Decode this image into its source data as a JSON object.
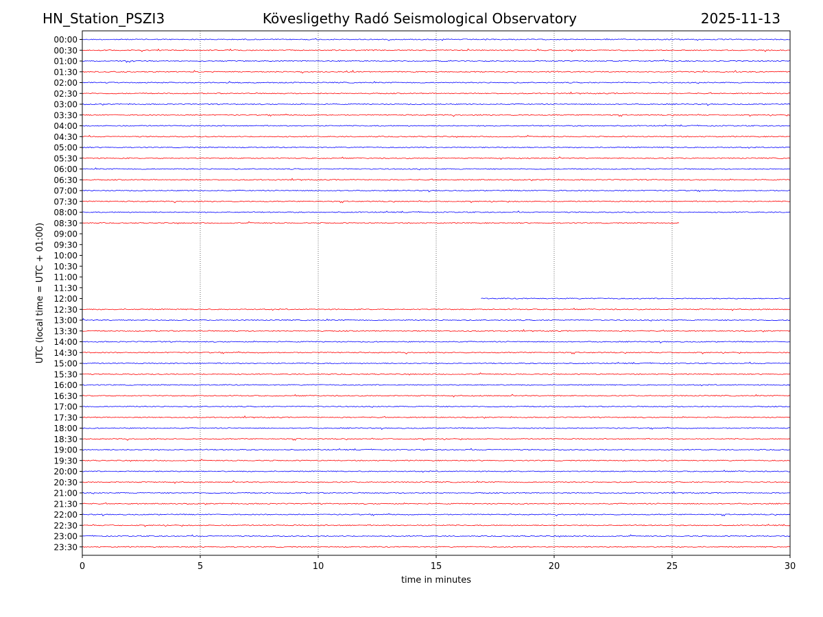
{
  "header": {
    "station": "HN_Station_PSZI3",
    "observatory": "Kövesligethy Radó Seismological Observatory",
    "date": "2025-11-13"
  },
  "chart_data": {
    "type": "line",
    "title": "Kövesligethy Radó Seismological Observatory",
    "xlabel": "time in minutes",
    "ylabel": "UTC (local time = UTC + 01:00)",
    "xlim": [
      0,
      30
    ],
    "xticks": [
      0,
      5,
      10,
      15,
      20,
      25,
      30
    ],
    "vertical_gridlines_minutes": [
      5,
      10,
      15,
      20,
      25
    ],
    "grid": "vertical dotted",
    "colors": {
      "even_hour_trace": "#0000ff",
      "half_hour_trace": "#ff0000"
    },
    "rows": [
      {
        "label": "00:00",
        "start": 0,
        "end": 30
      },
      {
        "label": "00:30",
        "start": 0,
        "end": 30
      },
      {
        "label": "01:00",
        "start": 0,
        "end": 30
      },
      {
        "label": "01:30",
        "start": 0,
        "end": 30
      },
      {
        "label": "02:00",
        "start": 0,
        "end": 30
      },
      {
        "label": "02:30",
        "start": 0,
        "end": 30
      },
      {
        "label": "03:00",
        "start": 0,
        "end": 30
      },
      {
        "label": "03:30",
        "start": 0,
        "end": 30
      },
      {
        "label": "04:00",
        "start": 0,
        "end": 30
      },
      {
        "label": "04:30",
        "start": 0,
        "end": 30
      },
      {
        "label": "05:00",
        "start": 0,
        "end": 30
      },
      {
        "label": "05:30",
        "start": 0,
        "end": 30
      },
      {
        "label": "06:00",
        "start": 0,
        "end": 30
      },
      {
        "label": "06:30",
        "start": 0,
        "end": 30
      },
      {
        "label": "07:00",
        "start": 0,
        "end": 30
      },
      {
        "label": "07:30",
        "start": 0,
        "end": 30
      },
      {
        "label": "08:00",
        "start": 0,
        "end": 30
      },
      {
        "label": "08:30",
        "start": 0,
        "end": 25.3
      },
      {
        "label": "09:00",
        "start": null,
        "end": null
      },
      {
        "label": "09:30",
        "start": null,
        "end": null
      },
      {
        "label": "10:00",
        "start": null,
        "end": null
      },
      {
        "label": "10:30",
        "start": null,
        "end": null
      },
      {
        "label": "11:00",
        "start": null,
        "end": null
      },
      {
        "label": "11:30",
        "start": null,
        "end": null
      },
      {
        "label": "12:00",
        "start": 16.9,
        "end": 30
      },
      {
        "label": "12:30",
        "start": 0,
        "end": 30
      },
      {
        "label": "13:00",
        "start": 0,
        "end": 30
      },
      {
        "label": "13:30",
        "start": 0,
        "end": 30
      },
      {
        "label": "14:00",
        "start": 0,
        "end": 30
      },
      {
        "label": "14:30",
        "start": 0,
        "end": 30
      },
      {
        "label": "15:00",
        "start": 0,
        "end": 30
      },
      {
        "label": "15:30",
        "start": 0,
        "end": 30
      },
      {
        "label": "16:00",
        "start": 0,
        "end": 30
      },
      {
        "label": "16:30",
        "start": 0,
        "end": 30
      },
      {
        "label": "17:00",
        "start": 0,
        "end": 30
      },
      {
        "label": "17:30",
        "start": 0,
        "end": 30
      },
      {
        "label": "18:00",
        "start": 0,
        "end": 30
      },
      {
        "label": "18:30",
        "start": 0,
        "end": 30
      },
      {
        "label": "19:00",
        "start": 0,
        "end": 30
      },
      {
        "label": "19:30",
        "start": 0,
        "end": 30
      },
      {
        "label": "20:00",
        "start": 0,
        "end": 30
      },
      {
        "label": "20:30",
        "start": 0,
        "end": 30
      },
      {
        "label": "21:00",
        "start": 0,
        "end": 30
      },
      {
        "label": "21:30",
        "start": 0,
        "end": 30
      },
      {
        "label": "22:00",
        "start": 0,
        "end": 30
      },
      {
        "label": "22:30",
        "start": 0,
        "end": 30
      },
      {
        "label": "23:00",
        "start": 0,
        "end": 30
      },
      {
        "label": "23:30",
        "start": 0,
        "end": 30
      }
    ]
  }
}
